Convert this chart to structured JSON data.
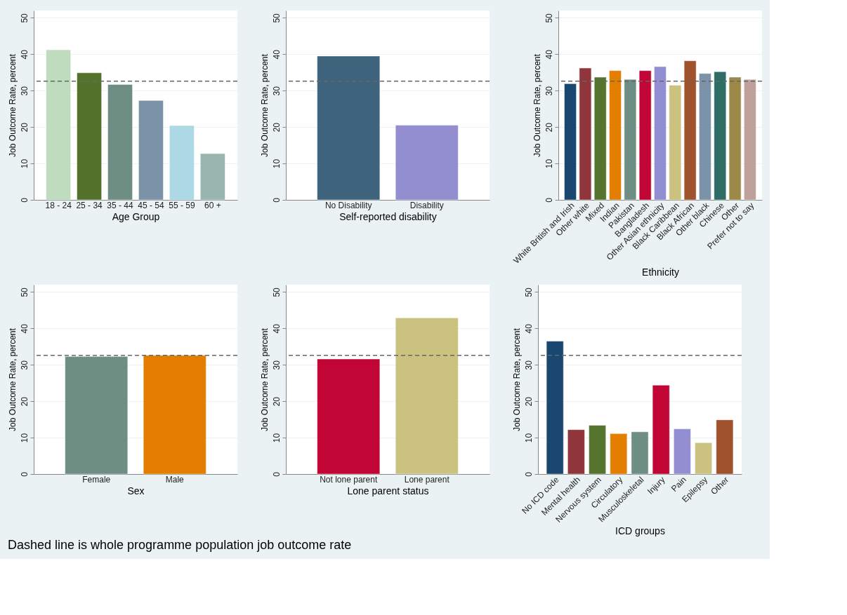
{
  "chart_data": [
    {
      "type": "bar",
      "xlabel": "Age Group",
      "ylabel": "Job Outcome Rate, percent",
      "categories": [
        "18 - 24",
        "25 - 34",
        "35 - 44",
        "45 - 54",
        "55 - 59",
        "60 +"
      ],
      "values": [
        41.2,
        34.9,
        31.7,
        27.3,
        20.4,
        12.7
      ],
      "colors": [
        "#bfdcbf",
        "#55722c",
        "#6e8e84",
        "#7b92a8",
        "#add8e5",
        "#98b5b0"
      ],
      "ylim": [
        0,
        52
      ],
      "yticks": [
        0,
        10,
        20,
        30,
        40,
        50
      ],
      "grid": "y",
      "ref_lines": [
        {
          "axis": "y",
          "value": 32.6,
          "color": "#666666",
          "line_style": "dashed"
        }
      ]
    },
    {
      "type": "bar",
      "xlabel": "Self-reported disability",
      "ylabel": "Job Outcome Rate, percent",
      "categories": [
        "No Disability",
        "Disability"
      ],
      "values": [
        39.5,
        20.5
      ],
      "colors": [
        "#3e637c",
        "#938ed0"
      ],
      "ylim": [
        0,
        52
      ],
      "yticks": [
        0,
        10,
        20,
        30,
        40,
        50
      ],
      "grid": "y",
      "ref_lines": [
        {
          "axis": "y",
          "value": 32.6,
          "color": "#666666",
          "line_style": "dashed"
        }
      ]
    },
    {
      "type": "bar",
      "xlabel": "Ethnicity",
      "ylabel": "Job Outcome Rate, percent",
      "categories": [
        "White British and Irish",
        "Other white",
        "Mixed",
        "Indian",
        "Pakistan",
        "Bangladesh",
        "Other Asian ethnicity",
        "Black Caribbean",
        "Black African",
        "Other black",
        "Chinese",
        "Other",
        "Prefer not to say"
      ],
      "values": [
        31.9,
        36.2,
        33.7,
        35.5,
        33.1,
        35.5,
        36.6,
        31.5,
        38.2,
        34.7,
        35.2,
        33.7,
        33.1
      ],
      "colors": [
        "#1a476f",
        "#90353b",
        "#55752f",
        "#e37e00",
        "#6e8e84",
        "#c10534",
        "#938dd2",
        "#cac27e",
        "#a0522d",
        "#7b92a8",
        "#2d6d66",
        "#9c8847",
        "#bfa19c"
      ],
      "ylim": [
        0,
        52
      ],
      "yticks": [
        0,
        10,
        20,
        30,
        40,
        50
      ],
      "grid": "y",
      "ref_lines": [
        {
          "axis": "y",
          "value": 32.6,
          "color": "#666666",
          "line_style": "dashed"
        }
      ]
    },
    {
      "type": "bar",
      "xlabel": "Sex",
      "ylabel": "Job Outcome Rate, percent",
      "categories": [
        "Female",
        "Male"
      ],
      "values": [
        32.3,
        32.6
      ],
      "colors": [
        "#6e8e84",
        "#e37e00"
      ],
      "ylim": [
        0,
        52
      ],
      "yticks": [
        0,
        10,
        20,
        30,
        40,
        50
      ],
      "grid": "y",
      "ref_lines": [
        {
          "axis": "y",
          "value": 32.6,
          "color": "#666666",
          "line_style": "dashed"
        }
      ]
    },
    {
      "type": "bar",
      "xlabel": "Lone parent status",
      "ylabel": "Job Outcome Rate, percent",
      "categories": [
        "Not lone parent",
        "Lone parent"
      ],
      "values": [
        31.6,
        42.9
      ],
      "colors": [
        "#c10534",
        "#cac27e"
      ],
      "ylim": [
        0,
        52
      ],
      "yticks": [
        0,
        10,
        20,
        30,
        40,
        50
      ],
      "grid": "y",
      "ref_lines": [
        {
          "axis": "y",
          "value": 32.6,
          "color": "#666666",
          "line_style": "dashed"
        }
      ]
    },
    {
      "type": "bar",
      "xlabel": "ICD groups",
      "ylabel": "Job Outcome Rate, percent",
      "categories": [
        "No ICD code",
        "Mental health",
        "Nervous system",
        "Circulatory",
        "Musculoskeletal",
        "Injury",
        "Pain",
        "Epilepsy",
        "Other"
      ],
      "values": [
        36.5,
        12.2,
        13.4,
        11.1,
        11.6,
        24.4,
        12.4,
        8.6,
        14.9
      ],
      "colors": [
        "#1a476f",
        "#90353b",
        "#55752f",
        "#e37e00",
        "#6e8e84",
        "#c10534",
        "#938dd2",
        "#cac27e",
        "#a0522d"
      ],
      "ylim": [
        0,
        52
      ],
      "yticks": [
        0,
        10,
        20,
        30,
        40,
        50
      ],
      "grid": "y",
      "ref_lines": [
        {
          "axis": "y",
          "value": 32.6,
          "color": "#666666",
          "line_style": "dashed"
        }
      ],
      "annotations": [
        "Dashed line is whole programme population job outcome rate"
      ]
    }
  ]
}
